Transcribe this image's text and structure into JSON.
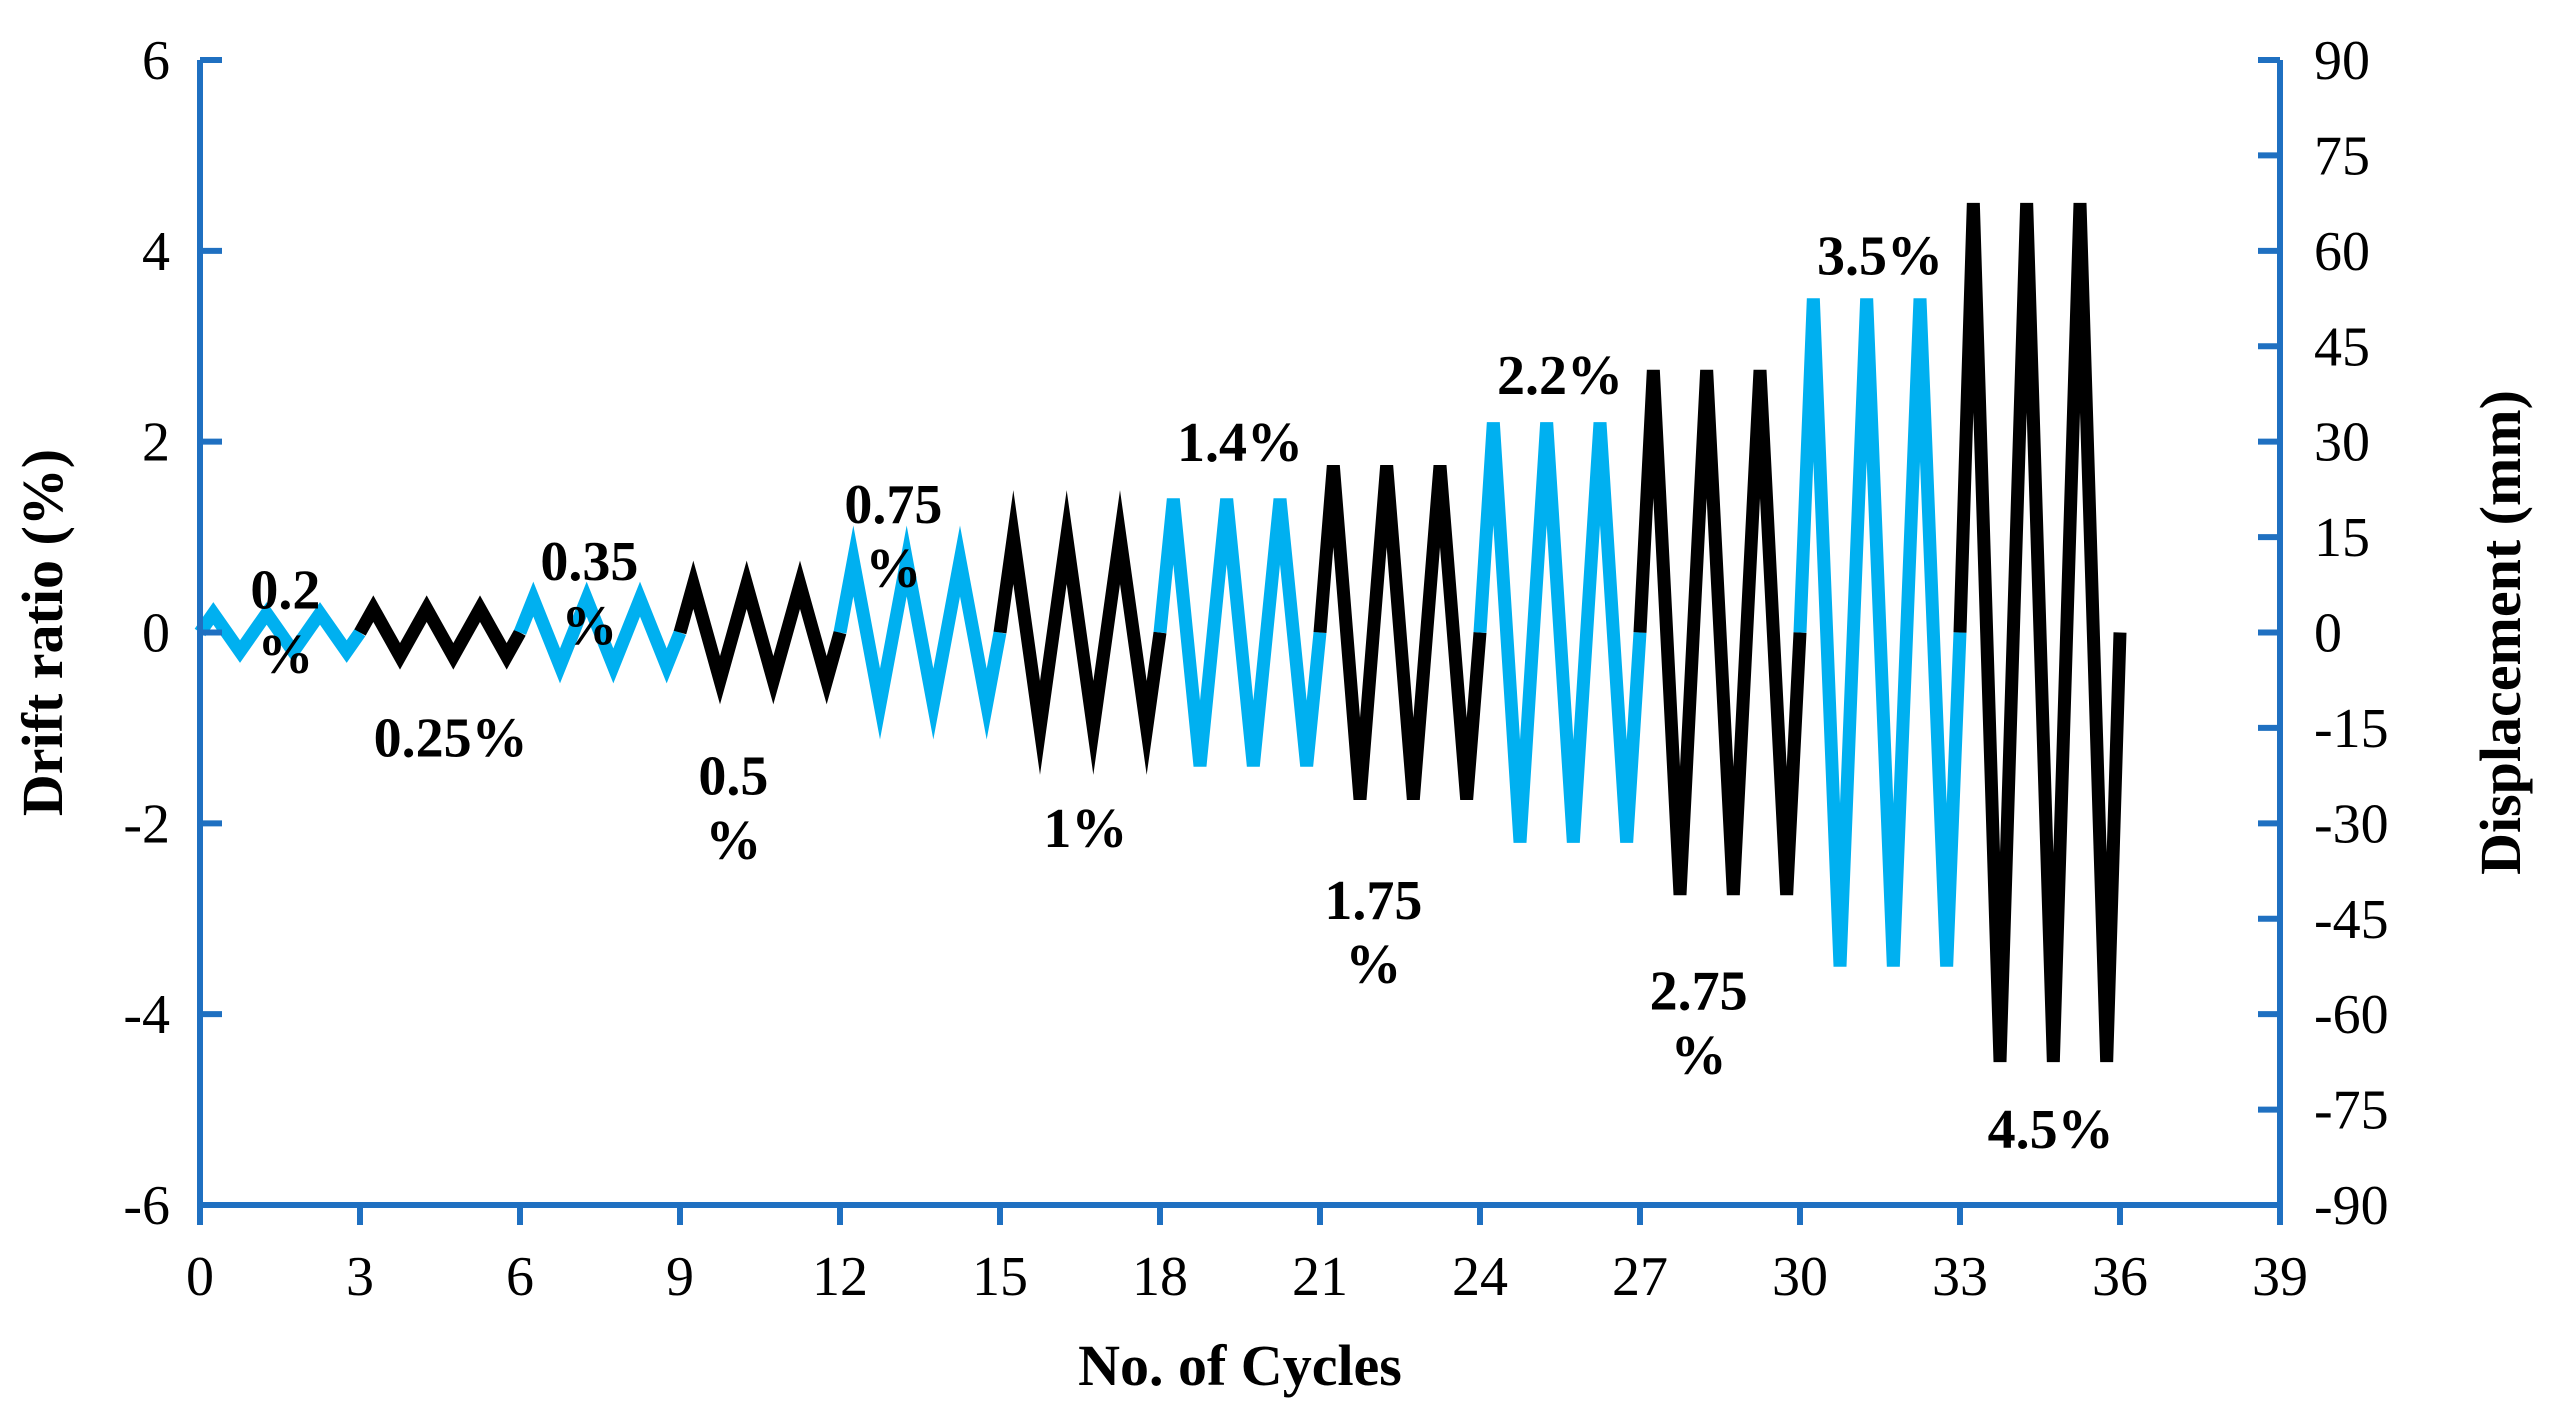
{
  "chart_data": {
    "type": "line",
    "title": "",
    "xlabel": "No. of Cycles",
    "ylabel": "Drift ratio (%)",
    "y2label": "Displacement (mm)",
    "xlim": [
      0,
      39
    ],
    "ylim": [
      -6,
      6
    ],
    "y2lim": [
      -90,
      90
    ],
    "xticks": [
      0,
      3,
      6,
      9,
      12,
      15,
      18,
      21,
      24,
      27,
      30,
      33,
      36,
      39
    ],
    "yticks": [
      -6,
      -4,
      -2,
      0,
      2,
      4,
      6
    ],
    "y2ticks": [
      -90,
      -75,
      -60,
      -45,
      -30,
      -15,
      0,
      15,
      30,
      45,
      60,
      75,
      90
    ],
    "colors": {
      "axis": "#1F70C1",
      "light": "#00B0F0",
      "dark": "#000000"
    },
    "series": [
      {
        "name": "0.2%",
        "amplitude": 0.2,
        "start_cycle": 0,
        "cycles": 3,
        "color": "light"
      },
      {
        "name": "0.25%",
        "amplitude": 0.25,
        "start_cycle": 3,
        "cycles": 3,
        "color": "dark"
      },
      {
        "name": "0.35%",
        "amplitude": 0.35,
        "start_cycle": 6,
        "cycles": 3,
        "color": "light"
      },
      {
        "name": "0.5%",
        "amplitude": 0.5,
        "start_cycle": 9,
        "cycles": 3,
        "color": "dark"
      },
      {
        "name": "0.75%",
        "amplitude": 0.75,
        "start_cycle": 12,
        "cycles": 3,
        "color": "light"
      },
      {
        "name": "1%",
        "amplitude": 1.0,
        "start_cycle": 15,
        "cycles": 3,
        "color": "dark"
      },
      {
        "name": "1.4%",
        "amplitude": 1.4,
        "start_cycle": 18,
        "cycles": 3,
        "color": "light"
      },
      {
        "name": "1.75%",
        "amplitude": 1.75,
        "start_cycle": 21,
        "cycles": 3,
        "color": "dark"
      },
      {
        "name": "2.2%",
        "amplitude": 2.2,
        "start_cycle": 24,
        "cycles": 3,
        "color": "light"
      },
      {
        "name": "2.75%",
        "amplitude": 2.75,
        "start_cycle": 27,
        "cycles": 3,
        "color": "dark"
      },
      {
        "name": "3.5%",
        "amplitude": 3.5,
        "start_cycle": 30,
        "cycles": 3,
        "color": "light"
      },
      {
        "name": "4.5%",
        "amplitude": 4.5,
        "start_cycle": 33,
        "cycles": 3,
        "color": "dark"
      }
    ],
    "annotations": [
      {
        "lines": [
          "0.2",
          "%"
        ],
        "x": 1.6,
        "y": 0.25,
        "anchor": "middle"
      },
      {
        "lines": [
          "0.25%"
        ],
        "x": 4.7,
        "y": -1.3,
        "anchor": "middle"
      },
      {
        "lines": [
          "0.35",
          "%"
        ],
        "x": 7.3,
        "y": 0.55,
        "anchor": "middle"
      },
      {
        "lines": [
          "0.5",
          "%"
        ],
        "x": 10.0,
        "y": -1.7,
        "anchor": "middle"
      },
      {
        "lines": [
          "0.75",
          "%"
        ],
        "x": 13.0,
        "y": 1.15,
        "anchor": "middle"
      },
      {
        "lines": [
          "1%"
        ],
        "x": 16.6,
        "y": -2.25,
        "anchor": "middle"
      },
      {
        "lines": [
          "1.4%"
        ],
        "x": 19.5,
        "y": 1.8,
        "anchor": "middle"
      },
      {
        "lines": [
          "1.75",
          "%"
        ],
        "x": 22.0,
        "y": -3.0,
        "anchor": "middle"
      },
      {
        "lines": [
          "2.2%"
        ],
        "x": 25.5,
        "y": 2.5,
        "anchor": "middle"
      },
      {
        "lines": [
          "2.75",
          "%"
        ],
        "x": 28.1,
        "y": -3.95,
        "anchor": "middle"
      },
      {
        "lines": [
          "3.5%"
        ],
        "x": 31.5,
        "y": 3.75,
        "anchor": "middle"
      },
      {
        "lines": [
          "4.5%"
        ],
        "x": 34.7,
        "y": -5.4,
        "anchor": "middle"
      }
    ]
  }
}
